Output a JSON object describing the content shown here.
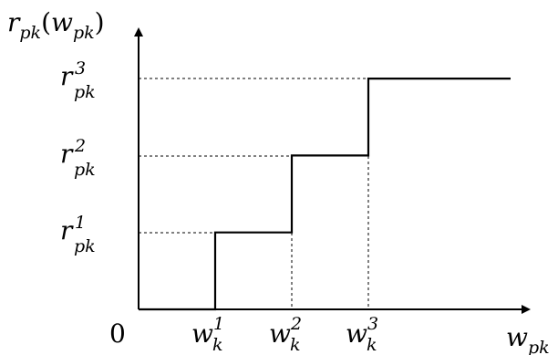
{
  "y_axis_label": {
    "main": "r",
    "sub": "pk",
    "paren_open": "(",
    "arg_main": "w",
    "arg_sub": "pk",
    "paren_close": ")"
  },
  "x_axis_label": {
    "main": "w",
    "sub": "pk"
  },
  "origin_label": "0",
  "y_ticks": [
    {
      "main": "r",
      "sub": "pk",
      "sup": "1"
    },
    {
      "main": "r",
      "sub": "pk",
      "sup": "2"
    },
    {
      "main": "r",
      "sub": "pk",
      "sup": "3"
    }
  ],
  "x_ticks": [
    {
      "main": "w",
      "sub": "k",
      "sup": "1"
    },
    {
      "main": "w",
      "sub": "k",
      "sup": "2"
    },
    {
      "main": "w",
      "sub": "k",
      "sup": "3"
    }
  ],
  "chart_data": {
    "type": "line",
    "step_function": true,
    "x": [
      0,
      1,
      1,
      2,
      2,
      3,
      3,
      4
    ],
    "y": [
      0,
      0,
      1,
      1,
      2,
      2,
      3,
      3
    ]
  }
}
